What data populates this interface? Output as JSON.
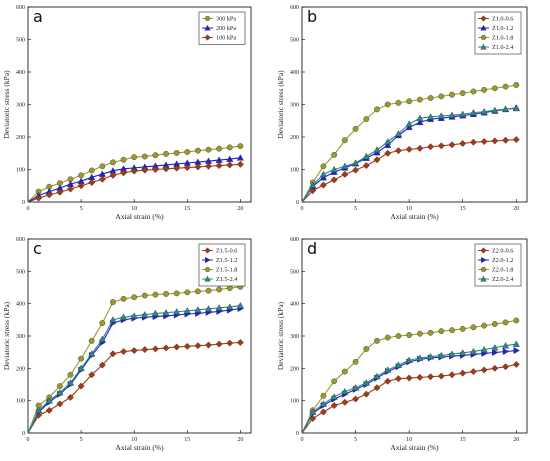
{
  "chart_data": [
    {
      "type": "line",
      "panel_label": "a",
      "xlabel": "Axial strain (%)",
      "ylabel": "Deviatoric stress (kPa)",
      "xlim": [
        0,
        21
      ],
      "ylim": [
        0,
        600
      ],
      "xticks": [
        "0",
        "5",
        "10",
        "15",
        "20"
      ],
      "yticks": [
        "0",
        "100",
        "200",
        "300",
        "400",
        "500",
        "600"
      ],
      "legend_position": "top-right",
      "series": [
        {
          "name": "300 kPa",
          "marker": "circle",
          "color": "#9a9a2a",
          "x": [
            0,
            1,
            2,
            3,
            4,
            5,
            6,
            7,
            8,
            9,
            10,
            11,
            12,
            13,
            14,
            15,
            16,
            17,
            18,
            19,
            20
          ],
          "values": [
            0,
            32,
            47,
            58,
            70,
            82,
            97,
            110,
            122,
            130,
            138,
            140,
            144,
            148,
            151,
            154,
            158,
            161,
            164,
            168,
            172
          ]
        },
        {
          "name": "200 kPa",
          "marker": "triangle",
          "color": "#1f1fd6",
          "x": [
            0,
            1,
            2,
            3,
            4,
            5,
            6,
            7,
            8,
            9,
            10,
            11,
            12,
            13,
            14,
            15,
            16,
            17,
            18,
            19,
            20
          ],
          "values": [
            0,
            20,
            32,
            43,
            55,
            64,
            76,
            86,
            96,
            102,
            105,
            108,
            111,
            114,
            117,
            120,
            123,
            126,
            129,
            132,
            136
          ]
        },
        {
          "name": "100 kPa",
          "marker": "diamond",
          "color": "#a23a12",
          "x": [
            0,
            1,
            2,
            3,
            4,
            5,
            6,
            7,
            8,
            9,
            10,
            11,
            12,
            13,
            14,
            15,
            16,
            17,
            18,
            19,
            20
          ],
          "values": [
            0,
            12,
            22,
            30,
            40,
            50,
            60,
            70,
            82,
            90,
            95,
            98,
            100,
            102,
            104,
            106,
            108,
            110,
            112,
            114,
            116
          ]
        }
      ]
    },
    {
      "type": "line",
      "panel_label": "b",
      "xlabel": "Axial strain (%)",
      "ylabel": "Deviatoric stress (kPa)",
      "xlim": [
        0,
        21
      ],
      "ylim": [
        0,
        600
      ],
      "xticks": [
        "0",
        "5",
        "10",
        "15",
        "20"
      ],
      "yticks": [
        "0",
        "100",
        "200",
        "300",
        "400",
        "500",
        "600"
      ],
      "legend_position": "top-right",
      "series": [
        {
          "name": "Z1.0-0.6",
          "marker": "diamond",
          "color": "#a23a12",
          "x": [
            0,
            1,
            2,
            3,
            4,
            5,
            6,
            7,
            8,
            9,
            10,
            11,
            12,
            13,
            14,
            15,
            16,
            17,
            18,
            19,
            20
          ],
          "values": [
            0,
            35,
            52,
            68,
            85,
            98,
            112,
            130,
            150,
            158,
            162,
            165,
            170,
            173,
            176,
            180,
            184,
            186,
            188,
            190,
            192
          ]
        },
        {
          "name": "Z1.0-1.2",
          "marker": "triangle",
          "color": "#1f1fd6",
          "x": [
            0,
            1,
            2,
            3,
            4,
            5,
            6,
            7,
            8,
            9,
            10,
            11,
            12,
            13,
            14,
            15,
            16,
            17,
            18,
            19,
            20
          ],
          "values": [
            0,
            48,
            75,
            92,
            105,
            118,
            135,
            152,
            175,
            205,
            230,
            245,
            255,
            258,
            262,
            266,
            270,
            275,
            280,
            285,
            290
          ]
        },
        {
          "name": "Z1.0-1.8",
          "marker": "circle",
          "color": "#9a9a2a",
          "x": [
            0,
            1,
            2,
            3,
            4,
            5,
            6,
            7,
            8,
            9,
            10,
            11,
            12,
            13,
            14,
            15,
            16,
            17,
            18,
            19,
            20
          ],
          "values": [
            0,
            60,
            110,
            145,
            190,
            225,
            255,
            285,
            300,
            305,
            310,
            315,
            320,
            325,
            330,
            335,
            340,
            345,
            350,
            355,
            360
          ]
        },
        {
          "name": "Z1.0-2.4",
          "marker": "triangle-up",
          "color": "#2a8a8a",
          "x": [
            0,
            1,
            2,
            3,
            4,
            5,
            6,
            7,
            8,
            9,
            10,
            11,
            12,
            13,
            14,
            15,
            16,
            17,
            18,
            19,
            20
          ],
          "values": [
            0,
            52,
            85,
            100,
            110,
            120,
            140,
            160,
            185,
            210,
            240,
            258,
            262,
            265,
            267,
            270,
            275,
            278,
            282,
            286,
            288
          ]
        }
      ]
    },
    {
      "type": "line",
      "panel_label": "c",
      "xlabel": "Axial strain (%)",
      "ylabel": "Deviatoric stress (kPa)",
      "xlim": [
        0,
        21
      ],
      "ylim": [
        0,
        600
      ],
      "xticks": [
        "0",
        "5",
        "10",
        "15",
        "20"
      ],
      "yticks": [
        "0",
        "100",
        "200",
        "300",
        "400",
        "500",
        "600"
      ],
      "legend_position": "top-right",
      "series": [
        {
          "name": "Z1.5-0.6",
          "marker": "diamond",
          "color": "#a23a12",
          "x": [
            0,
            1,
            2,
            3,
            4,
            5,
            6,
            7,
            8,
            9,
            10,
            11,
            12,
            13,
            14,
            15,
            16,
            17,
            18,
            19,
            20
          ],
          "values": [
            0,
            55,
            70,
            90,
            110,
            145,
            180,
            210,
            245,
            252,
            255,
            258,
            260,
            263,
            266,
            268,
            270,
            272,
            275,
            278,
            280
          ]
        },
        {
          "name": "Z1.5-1.2",
          "marker": "triangle-right",
          "color": "#1f1fd6",
          "x": [
            0,
            1,
            2,
            3,
            4,
            5,
            6,
            7,
            8,
            9,
            10,
            11,
            12,
            13,
            14,
            15,
            16,
            17,
            18,
            19,
            20
          ],
          "values": [
            0,
            65,
            95,
            120,
            150,
            195,
            240,
            280,
            340,
            350,
            355,
            358,
            360,
            362,
            365,
            368,
            370,
            373,
            376,
            380,
            385
          ]
        },
        {
          "name": "Z1.5-1.8",
          "marker": "circle",
          "color": "#9a9a2a",
          "x": [
            0,
            1,
            2,
            3,
            4,
            5,
            6,
            7,
            8,
            9,
            10,
            11,
            12,
            13,
            14,
            15,
            16,
            17,
            18,
            19,
            20
          ],
          "values": [
            0,
            85,
            110,
            145,
            180,
            230,
            285,
            340,
            405,
            415,
            420,
            425,
            428,
            430,
            432,
            435,
            438,
            440,
            444,
            448,
            452
          ]
        },
        {
          "name": "Z1.5-2.4",
          "marker": "triangle-up",
          "color": "#2a8a8a",
          "x": [
            0,
            1,
            2,
            3,
            4,
            5,
            6,
            7,
            8,
            9,
            10,
            11,
            12,
            13,
            14,
            15,
            16,
            17,
            18,
            19,
            20
          ],
          "values": [
            0,
            70,
            100,
            125,
            155,
            200,
            245,
            290,
            350,
            358,
            362,
            366,
            370,
            372,
            375,
            378,
            381,
            384,
            387,
            390,
            394
          ]
        }
      ]
    },
    {
      "type": "line",
      "panel_label": "d",
      "xlabel": "Axial strain (%)",
      "ylabel": "Deviatoric stress (kPa)",
      "xlim": [
        0,
        21
      ],
      "ylim": [
        0,
        600
      ],
      "xticks": [
        "0",
        "5",
        "10",
        "15",
        "20"
      ],
      "yticks": [
        "0",
        "100",
        "200",
        "300",
        "400",
        "500",
        "600"
      ],
      "legend_position": "top-right",
      "series": [
        {
          "name": "Z2.0-0.6",
          "marker": "diamond",
          "color": "#a23a12",
          "x": [
            0,
            1,
            2,
            3,
            4,
            5,
            6,
            7,
            8,
            9,
            10,
            11,
            12,
            13,
            14,
            15,
            16,
            17,
            18,
            19,
            20
          ],
          "values": [
            0,
            45,
            65,
            85,
            95,
            105,
            120,
            140,
            160,
            168,
            170,
            172,
            174,
            176,
            180,
            185,
            190,
            195,
            200,
            205,
            212
          ]
        },
        {
          "name": "Z2.0-1.2",
          "marker": "triangle-right",
          "color": "#1f1fd6",
          "x": [
            0,
            1,
            2,
            3,
            4,
            5,
            6,
            7,
            8,
            9,
            10,
            11,
            12,
            13,
            14,
            15,
            16,
            17,
            18,
            19,
            20
          ],
          "values": [
            0,
            60,
            85,
            105,
            120,
            135,
            150,
            170,
            190,
            205,
            220,
            228,
            232,
            235,
            238,
            240,
            243,
            246,
            249,
            252,
            255
          ]
        },
        {
          "name": "Z2.0-1.8",
          "marker": "circle",
          "color": "#9a9a2a",
          "x": [
            0,
            1,
            2,
            3,
            4,
            5,
            6,
            7,
            8,
            9,
            10,
            11,
            12,
            13,
            14,
            15,
            16,
            17,
            18,
            19,
            20
          ],
          "values": [
            0,
            70,
            115,
            160,
            190,
            220,
            260,
            285,
            295,
            300,
            303,
            307,
            310,
            315,
            318,
            322,
            327,
            332,
            337,
            342,
            348
          ]
        },
        {
          "name": "Z2.0-2.4",
          "marker": "triangle-up",
          "color": "#2a8a8a",
          "x": [
            0,
            1,
            2,
            3,
            4,
            5,
            6,
            7,
            8,
            9,
            10,
            11,
            12,
            13,
            14,
            15,
            16,
            17,
            18,
            19,
            20
          ],
          "values": [
            0,
            65,
            90,
            112,
            128,
            140,
            155,
            175,
            195,
            210,
            225,
            232,
            236,
            240,
            244,
            248,
            252,
            258,
            264,
            270,
            275
          ]
        }
      ]
    }
  ]
}
